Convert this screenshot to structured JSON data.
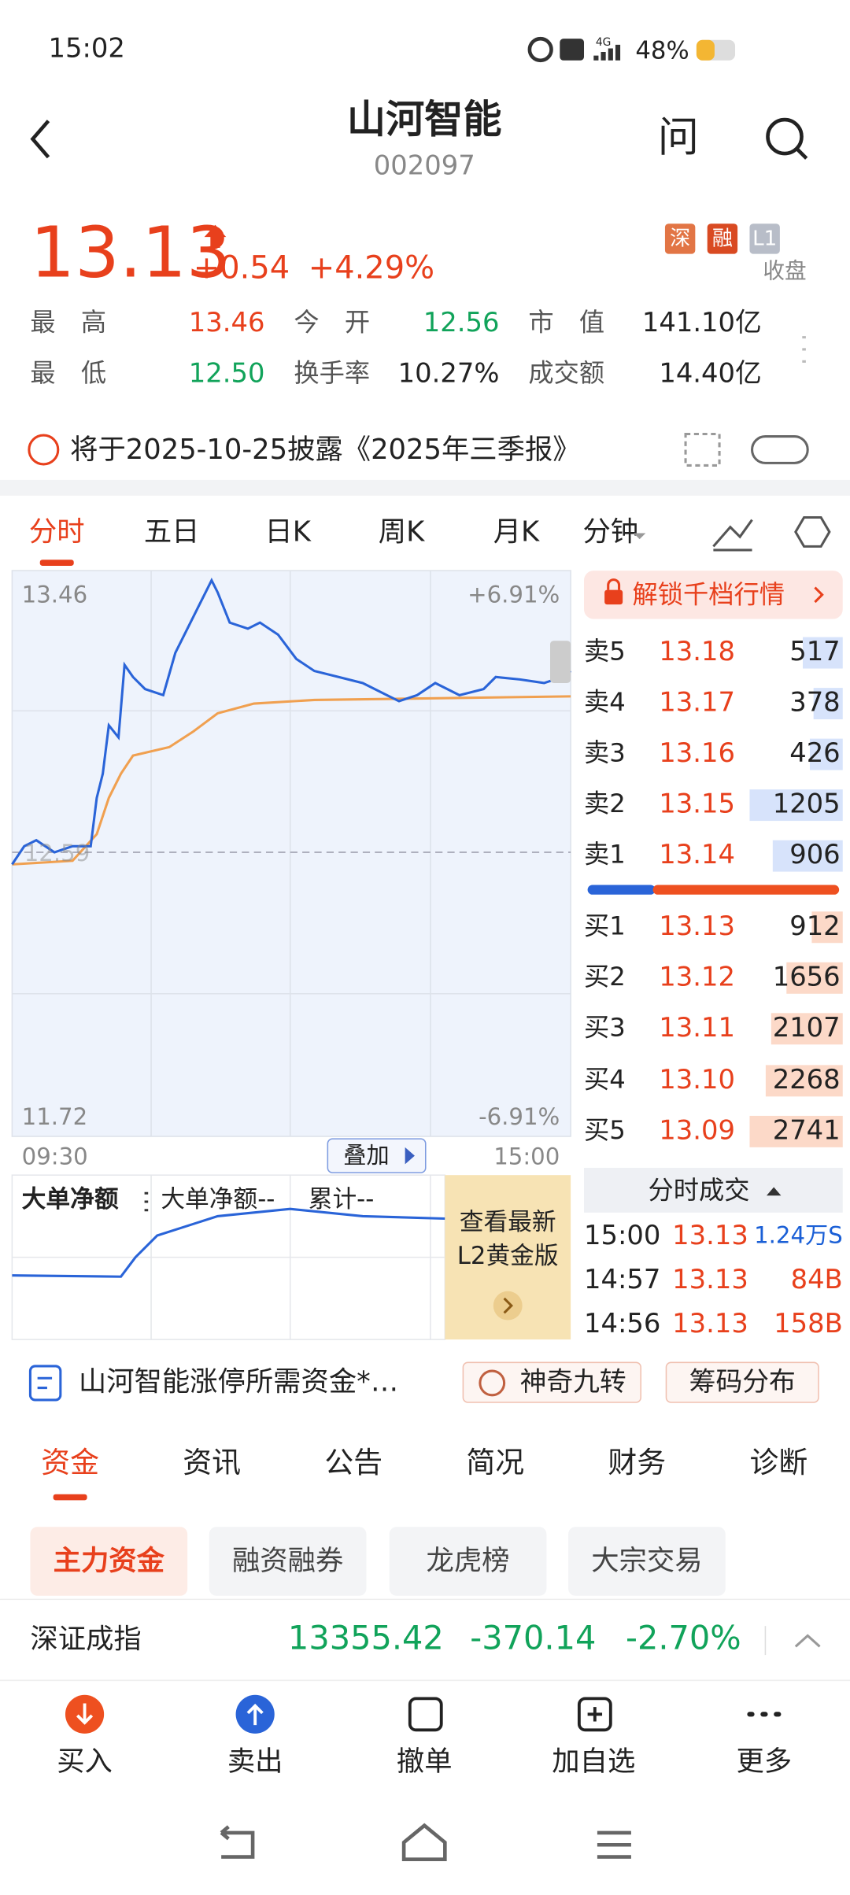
{
  "status": {
    "time": "15:02",
    "network": "4G",
    "battery": "48%"
  },
  "header": {
    "title": "山河智能",
    "code": "002097",
    "ask": "问"
  },
  "quote": {
    "price": "13.13",
    "change": "+0.54",
    "change_pct": "+4.29%",
    "tags": [
      "深",
      "融",
      "L1"
    ],
    "state": "收盘"
  },
  "stats": [
    [
      {
        "label": "最　高",
        "value": "13.46",
        "color": "#e8401c"
      },
      {
        "label": "今　开",
        "value": "12.56",
        "color": "#11a35a"
      },
      {
        "label": "市　值",
        "value": "141.10亿",
        "color": "#222222"
      }
    ],
    [
      {
        "label": "最　低",
        "value": "12.50",
        "color": "#11a35a"
      },
      {
        "label": "换手率",
        "value": "10.27%",
        "color": "#222222"
      },
      {
        "label": "成交额",
        "value": "14.40亿",
        "color": "#222222"
      }
    ]
  ],
  "notice": "将于2025-10-25披露《2025年三季报》",
  "tabs": [
    "分时",
    "五日",
    "日K",
    "周K",
    "月K",
    "分钟"
  ],
  "intraday": {
    "high": "13.46",
    "high_pct": "+6.91%",
    "prev_close": "12.59",
    "low": "11.72",
    "low_pct": "-6.91%",
    "start": "09:30",
    "end": "15:00",
    "overlay": "叠加"
  },
  "order_book": {
    "unlock": "解锁千档行情",
    "asks": [
      {
        "label": "卖5",
        "price": "13.18",
        "volume": 517
      },
      {
        "label": "卖4",
        "price": "13.17",
        "volume": 378
      },
      {
        "label": "卖3",
        "price": "13.16",
        "volume": 426
      },
      {
        "label": "卖2",
        "price": "13.15",
        "volume": 1205
      },
      {
        "label": "卖1",
        "price": "13.14",
        "volume": 906
      }
    ],
    "bids": [
      {
        "label": "买1",
        "price": "13.13",
        "volume": 912
      },
      {
        "label": "买2",
        "price": "13.12",
        "volume": 1656
      },
      {
        "label": "买3",
        "price": "13.11",
        "volume": 2107
      },
      {
        "label": "买4",
        "price": "13.10",
        "volume": 2268
      },
      {
        "label": "买5",
        "price": "13.09",
        "volume": 2741
      }
    ]
  },
  "trades": {
    "title": "分时成交",
    "rows": [
      {
        "time": "15:00",
        "price": "13.13",
        "volume": "1.24万S",
        "color": "#1a5fd6"
      },
      {
        "time": "14:57",
        "price": "13.13",
        "volume": "84B",
        "color": "#e8401c"
      },
      {
        "time": "14:56",
        "price": "13.13",
        "volume": "158B",
        "color": "#e8401c"
      }
    ]
  },
  "flow": {
    "title": "大单净额",
    "legend_net": "大单净额--",
    "legend_total": "累计--",
    "promo": [
      "查看最新",
      "L2黄金版"
    ]
  },
  "news": {
    "headline": "山河智能涨停所需资金*…",
    "buttons": [
      "神奇九转",
      "筹码分布"
    ]
  },
  "sections": [
    "资金",
    "资讯",
    "公告",
    "简况",
    "财务",
    "诊断"
  ],
  "chips": [
    "主力资金",
    "融资融券",
    "龙虎榜",
    "大宗交易"
  ],
  "index": {
    "name": "深证成指",
    "value": "13355.42",
    "change": "-370.14",
    "change_pct": "-2.70%"
  },
  "actions": [
    "买入",
    "卖出",
    "撤单",
    "加自选",
    "更多"
  ]
}
